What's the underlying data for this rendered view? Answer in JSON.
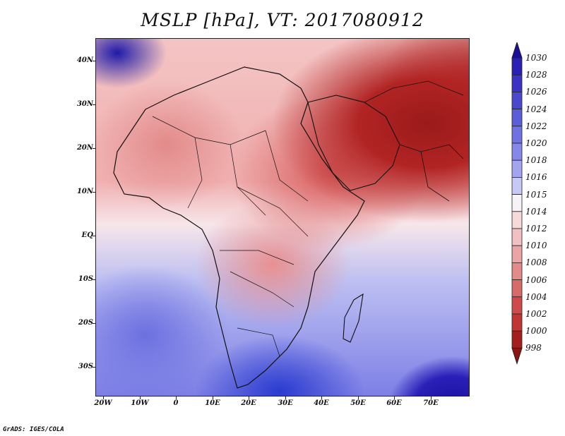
{
  "title": "MSLP [hPa], VT: 2017080912",
  "credit": "GrADS: IGES/COLA",
  "axes": {
    "lat_labels": [
      "40N",
      "30N",
      "20N",
      "10N",
      "EQ",
      "10S",
      "20S",
      "30S"
    ],
    "lon_labels": [
      "20W",
      "10W",
      "0",
      "10E",
      "20E",
      "30E",
      "40E",
      "50E",
      "60E",
      "70E"
    ]
  },
  "colorbar": {
    "levels": [
      "1030",
      "1028",
      "1026",
      "1024",
      "1022",
      "1020",
      "1018",
      "1016",
      "1015",
      "1014",
      "1012",
      "1010",
      "1008",
      "1006",
      "1004",
      "1002",
      "1000",
      "998"
    ],
    "colors": [
      "#1a0e9c",
      "#2a20b4",
      "#3b33c4",
      "#4b48d0",
      "#5c5ddb",
      "#6f72e3",
      "#8587ea",
      "#a2a4f0",
      "#c7c8f6",
      "#f6f2f6",
      "#f6dada",
      "#f1c0c0",
      "#eba4a4",
      "#e38a8a",
      "#d96a6a",
      "#cf4b4b",
      "#c23535",
      "#a41e1e",
      "#8c1414"
    ]
  },
  "map": {
    "projection": "latlon",
    "extent": {
      "lon": [
        -23,
        80
      ],
      "lat": [
        -37,
        45
      ]
    },
    "features": [
      "Africa",
      "Arabian Peninsula",
      "Madagascar",
      "Mediterranean",
      "Iran",
      "India"
    ],
    "colors": {
      "land_border": "#111111",
      "low_pressure": "#a41e1e",
      "high_pressure": "#1a0e9c",
      "neutral": "#f6f2f6"
    }
  }
}
